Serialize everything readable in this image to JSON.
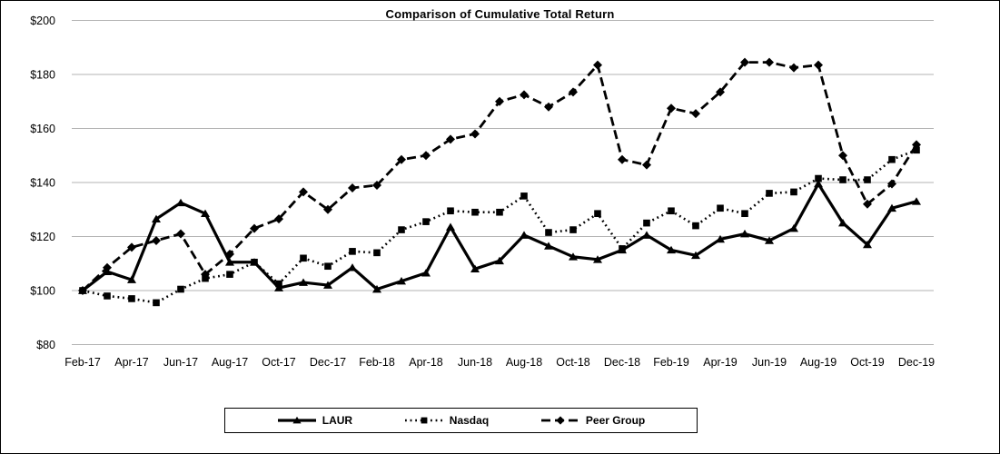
{
  "frame": {
    "background": "#ffffff",
    "border_color": "#000000"
  },
  "chart_data": {
    "type": "line",
    "title": "Comparison of Cumulative Total Return",
    "xlabel": "",
    "ylabel": "",
    "ylim": [
      80,
      200
    ],
    "y_ticks": [
      200,
      180,
      160,
      140,
      120,
      100,
      80
    ],
    "y_tick_prefix": "$",
    "grid": "horizontal",
    "grid_color": "#b3b3b3",
    "line_color": "#000000",
    "legend_position": "bottom",
    "x": [
      "Feb-17",
      "Mar-17",
      "Apr-17",
      "May-17",
      "Jun-17",
      "Jul-17",
      "Aug-17",
      "Sep-17",
      "Oct-17",
      "Nov-17",
      "Dec-17",
      "Jan-18",
      "Feb-18",
      "Mar-18",
      "Apr-18",
      "May-18",
      "Jun-18",
      "Jul-18",
      "Aug-18",
      "Sep-18",
      "Oct-18",
      "Nov-18",
      "Dec-18",
      "Jan-19",
      "Feb-19",
      "Mar-19",
      "Apr-19",
      "May-19",
      "Jun-19",
      "Jul-19",
      "Aug-19",
      "Sep-19",
      "Oct-19",
      "Nov-19",
      "Dec-19"
    ],
    "x_tick_labels": [
      "Feb-17",
      "Apr-17",
      "Jun-17",
      "Aug-17",
      "Oct-17",
      "Dec-17",
      "Feb-18",
      "Apr-18",
      "Jun-18",
      "Aug-18",
      "Oct-18",
      "Dec-18",
      "Feb-19",
      "Apr-19",
      "Jun-19",
      "Aug-19",
      "Oct-19",
      "Dec-19"
    ],
    "x_tick_step": 2,
    "series": [
      {
        "name": "LAUR",
        "line_style": "solid",
        "marker": "triangle",
        "color": "#000000",
        "values": [
          100,
          107,
          104,
          126.5,
          132.5,
          128.5,
          110.5,
          110.5,
          101,
          103,
          102,
          108.5,
          100.5,
          103.5,
          106.5,
          123.5,
          108,
          111,
          120.5,
          116.5,
          112.5,
          111.5,
          115,
          120.5,
          115,
          113,
          119,
          121,
          118.5,
          123,
          139.5,
          125,
          117,
          130.5,
          133
        ]
      },
      {
        "name": "Nasdaq",
        "line_style": "dotted",
        "marker": "square",
        "color": "#000000",
        "values": [
          100,
          98,
          97,
          95.5,
          100.5,
          104.5,
          106,
          110.5,
          102.5,
          112,
          109,
          114.5,
          114,
          122.5,
          125.5,
          129.5,
          129,
          129,
          135,
          121.5,
          122.5,
          128.5,
          115.5,
          125,
          129.5,
          124,
          130.5,
          128.5,
          136,
          136.5,
          141.5,
          141,
          141,
          148.5,
          152
        ]
      },
      {
        "name": "Peer Group",
        "line_style": "dashed",
        "marker": "diamond",
        "color": "#000000",
        "values": [
          100,
          108.5,
          116,
          118.5,
          121,
          106,
          113.5,
          123,
          126.5,
          136.5,
          130,
          138,
          139,
          148.5,
          150,
          156,
          158,
          170,
          172.5,
          168,
          173.5,
          183.5,
          148.5,
          146.5,
          167.5,
          165.5,
          173.5,
          184.5,
          184.5,
          182.5,
          183.5,
          150,
          132,
          139.5,
          154
        ]
      }
    ]
  }
}
